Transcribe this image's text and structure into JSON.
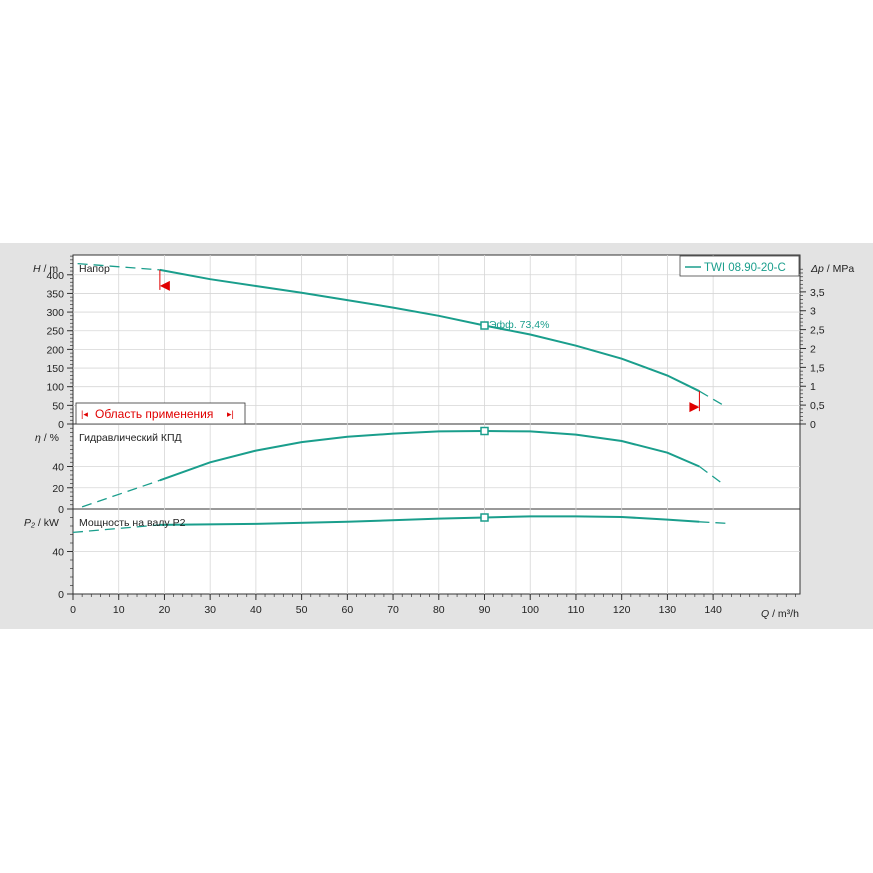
{
  "chart_data": {
    "type": "line",
    "legend": "TWI 08.90-20-C",
    "x_axis": {
      "label": "Q / m³/h",
      "label_italic": "Q",
      "label_unit": " / m³/h",
      "range": [
        0,
        159
      ],
      "ticks": [
        0,
        10,
        20,
        30,
        40,
        50,
        60,
        70,
        80,
        90,
        100,
        110,
        120,
        130,
        140
      ]
    },
    "range_of_application": {
      "label": "Область применения",
      "q_min": 19,
      "q_max": 137
    },
    "duty_point": {
      "q": 90,
      "efficiency_label": "Эфф.  73,4%"
    },
    "panels": [
      {
        "id": "head",
        "title": "Напор",
        "ylabel_italic": "H",
        "ylabel_unit": " / m",
        "ylim": [
          0,
          453
        ],
        "yticks": [
          0,
          50,
          100,
          150,
          200,
          250,
          300,
          350,
          400
        ],
        "right_axis": {
          "label_italic": "Δp",
          "label_unit": " / MPa",
          "ticks": [
            0,
            0.5,
            1,
            1.5,
            2,
            2.5,
            3,
            3.5
          ],
          "tick_labels": [
            "0",
            "0,5",
            "1",
            "1,5",
            "2",
            "2,5",
            "3",
            "3,5"
          ]
        },
        "dashed_low": {
          "x": [
            1,
            19
          ],
          "y": [
            430,
            413
          ]
        },
        "solid": {
          "x": [
            19,
            30,
            40,
            50,
            60,
            70,
            80,
            90,
            100,
            110,
            120,
            130,
            137
          ],
          "y": [
            413,
            388,
            370,
            352,
            332,
            312,
            290,
            264,
            240,
            210,
            175,
            130,
            88
          ]
        },
        "dashed_high": {
          "x": [
            137,
            142
          ],
          "y": [
            88,
            52
          ]
        }
      },
      {
        "id": "efficiency",
        "title": "Гидравлический КПД",
        "ylabel_italic": "η",
        "ylabel_unit": " / %",
        "ylim": [
          0,
          80
        ],
        "yticks": [
          0,
          20,
          40
        ],
        "dashed_low": {
          "x": [
            2,
            19
          ],
          "y": [
            2,
            27
          ]
        },
        "solid": {
          "x": [
            19,
            30,
            40,
            50,
            60,
            70,
            80,
            90,
            100,
            110,
            120,
            130,
            137
          ],
          "y": [
            27,
            44,
            55,
            63,
            68,
            71,
            73,
            73.4,
            73,
            70,
            64,
            53,
            40
          ]
        },
        "dashed_high": {
          "x": [
            137,
            142
          ],
          "y": [
            40,
            24
          ]
        }
      },
      {
        "id": "power",
        "title": "Мощность на валу P2",
        "ylabel_italic": "P₂",
        "ylabel_unit": " / kW",
        "ylim": [
          0,
          80
        ],
        "yticks": [
          0,
          40
        ],
        "dashed_low": {
          "x": [
            0,
            19
          ],
          "y": [
            58,
            65
          ]
        },
        "solid": {
          "x": [
            19,
            40,
            60,
            80,
            90,
            100,
            110,
            120,
            130,
            137
          ],
          "y": [
            65,
            66,
            68,
            71,
            72,
            73,
            73,
            72.5,
            70,
            68
          ]
        },
        "dashed_high": {
          "x": [
            137,
            143
          ],
          "y": [
            68,
            66.5
          ]
        }
      }
    ]
  }
}
